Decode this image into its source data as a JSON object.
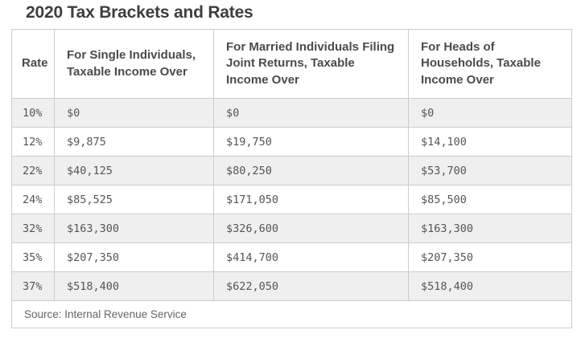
{
  "page": {
    "title": "2020 Tax Brackets and Rates"
  },
  "table": {
    "columns": [
      "Rate",
      "For Single Individuals,\nTaxable Income Over",
      "For Married Individuals Filing\nJoint Returns, Taxable\nIncome Over",
      "For Heads of\nHouseholds, Taxable\nIncome Over"
    ],
    "rows": [
      {
        "rate": "10%",
        "single": "$0",
        "married": "$0",
        "hoh": "$0"
      },
      {
        "rate": "12%",
        "single": "$9,875",
        "married": "$19,750",
        "hoh": "$14,100"
      },
      {
        "rate": "22%",
        "single": "$40,125",
        "married": "$80,250",
        "hoh": "$53,700"
      },
      {
        "rate": "24%",
        "single": "$85,525",
        "married": "$171,050",
        "hoh": "$85,500"
      },
      {
        "rate": "32%",
        "single": "$163,300",
        "married": "$326,600",
        "hoh": "$163,300"
      },
      {
        "rate": "35%",
        "single": "$207,350",
        "married": "$414,700",
        "hoh": "$207,350"
      },
      {
        "rate": "37%",
        "single": "$518,400",
        "married": "$622,050",
        "hoh": "$518,400"
      }
    ],
    "source_note": "Source: Internal Revenue Service"
  },
  "colors": {
    "stripe": "#efefef",
    "border": "#cccccc",
    "title_text": "#3e3e3e",
    "header_text": "#4b4b4b",
    "cell_text": "#555555",
    "source_text": "#666666"
  }
}
